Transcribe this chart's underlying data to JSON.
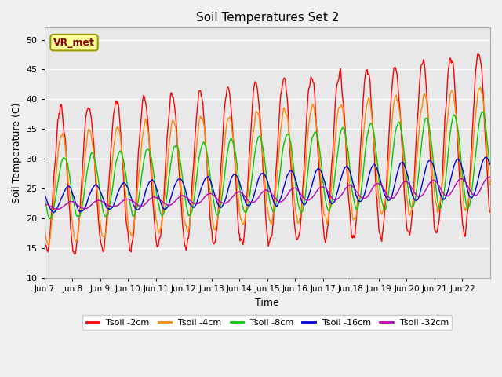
{
  "title": "Soil Temperatures Set 2",
  "xlabel": "Time",
  "ylabel": "Soil Temperature (C)",
  "ylim": [
    10,
    52
  ],
  "yticks": [
    10,
    15,
    20,
    25,
    30,
    35,
    40,
    45,
    50
  ],
  "fig_bg_color": "#f0f0f0",
  "plot_bg_color": "#e8e8e8",
  "grid_color": "#ffffff",
  "annotation_text": "VR_met",
  "annotation_color": "#8b0000",
  "annotation_bg": "#ffff99",
  "annotation_edge": "#999900",
  "series_colors": {
    "Tsoil -2cm": "#ff0000",
    "Tsoil -4cm": "#ff8800",
    "Tsoil -8cm": "#00cc00",
    "Tsoil -16cm": "#0000dd",
    "Tsoil -32cm": "#bb00bb"
  },
  "x_labels": [
    "Jun 7",
    "Jun 8",
    "Jun 9",
    "Jun 10",
    "Jun 11",
    "Jun 12",
    "Jun 13",
    "Jun 14",
    "Jun 15",
    "Jun 16",
    "Jun 17",
    "Jun 18",
    "Jun 19",
    "Jun 20",
    "Jun 21",
    "Jun 22"
  ],
  "num_days": 16,
  "pts_per_day": 48,
  "seed": 0
}
